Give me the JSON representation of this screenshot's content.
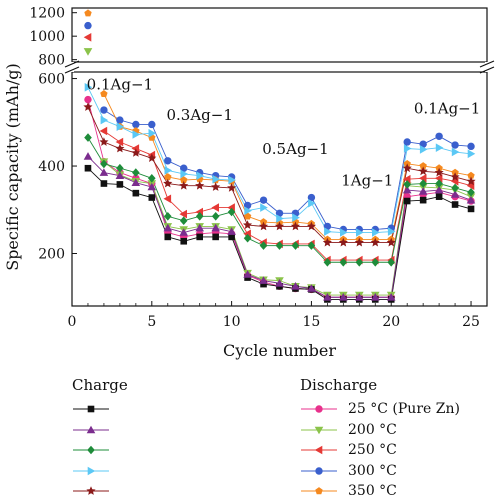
{
  "chart_data": {
    "type": "scatter",
    "xlabel": "Cycle number",
    "ylabel": "Specific capacity (mAh/g)",
    "x_ticks": [
      "0",
      "5",
      "10",
      "15",
      "20",
      "25"
    ],
    "y_ticks_lower": [
      "200",
      "400",
      "600"
    ],
    "y_ticks_upper": [
      "800",
      "1000",
      "1200"
    ],
    "xlim": [
      0,
      26
    ],
    "ylim_lower": [
      80,
      615
    ],
    "ylim_upper": [
      780,
      1240
    ],
    "annotations": [
      {
        "text": "0.1Ag−1",
        "x": 3.0,
        "y": 575
      },
      {
        "text": "0.3Ag−1",
        "x": 8.0,
        "y": 505
      },
      {
        "text": "0.5Ag−1",
        "x": 14.0,
        "y": 428
      },
      {
        "text": "1Ag−1",
        "x": 18.5,
        "y": 355
      },
      {
        "text": "0.1Ag−1",
        "x": 23.5,
        "y": 520
      }
    ],
    "x": [
      1,
      2,
      3,
      4,
      5,
      6,
      7,
      8,
      9,
      10,
      11,
      12,
      13,
      14,
      15,
      16,
      17,
      18,
      19,
      20,
      21,
      22,
      23,
      24,
      25
    ],
    "series": [
      {
        "name": "25 °C (Pure Zn)",
        "group": "discharge",
        "color": "#e8318c",
        "marker": "circle",
        "values": [
          552,
          410,
          385,
          372,
          360,
          248,
          238,
          245,
          248,
          245,
          150,
          135,
          125,
          120,
          118,
          100,
          100,
          100,
          100,
          100,
          330,
          335,
          340,
          330,
          320
        ]
      },
      {
        "name": "200 °C",
        "group": "discharge",
        "color": "#8bc34a",
        "marker": "triangle-down",
        "values": [
          870,
          410,
          380,
          365,
          360,
          262,
          255,
          262,
          262,
          255,
          155,
          140,
          138,
          125,
          122,
          105,
          105,
          105,
          105,
          105,
          355,
          352,
          350,
          345,
          330
        ]
      },
      {
        "name": "250 °C",
        "group": "discharge",
        "color": "#e53935",
        "marker": "triangle-left",
        "values": [
          990,
          480,
          455,
          440,
          425,
          325,
          290,
          295,
          305,
          305,
          245,
          225,
          222,
          222,
          222,
          185,
          185,
          185,
          185,
          185,
          370,
          372,
          372,
          365,
          355
        ]
      },
      {
        "name": "300 °C",
        "group": "discharge",
        "color": "#3a5fcd",
        "marker": "circle",
        "values": [
          1090,
          528,
          505,
          495,
          495,
          412,
          395,
          385,
          378,
          375,
          310,
          322,
          292,
          292,
          328,
          262,
          255,
          255,
          255,
          258,
          455,
          450,
          468,
          448,
          445
        ]
      },
      {
        "name": "350 °C",
        "group": "discharge",
        "color": "#f5891f",
        "marker": "pentagon",
        "values": [
          1195,
          565,
          490,
          480,
          465,
          375,
          368,
          370,
          368,
          365,
          285,
          272,
          270,
          272,
          268,
          232,
          232,
          232,
          232,
          232,
          405,
          400,
          395,
          385,
          378
        ]
      },
      {
        "name": "",
        "group": "charge",
        "color": "#111111",
        "marker": "square",
        "values": [
          395,
          360,
          358,
          338,
          328,
          238,
          228,
          238,
          238,
          238,
          145,
          130,
          125,
          120,
          118,
          95,
          95,
          95,
          95,
          95,
          320,
          322,
          330,
          312,
          302
        ]
      },
      {
        "name": "",
        "group": "charge",
        "color": "#7b2d8e",
        "marker": "triangle-up",
        "values": [
          422,
          385,
          378,
          362,
          352,
          258,
          248,
          258,
          258,
          250,
          152,
          138,
          132,
          125,
          120,
          100,
          100,
          100,
          100,
          100,
          345,
          342,
          345,
          335,
          322
        ]
      },
      {
        "name": "",
        "group": "charge",
        "color": "#1e8c3a",
        "marker": "diamond",
        "values": [
          465,
          405,
          395,
          385,
          372,
          285,
          275,
          285,
          285,
          295,
          235,
          218,
          218,
          218,
          218,
          180,
          180,
          180,
          180,
          180,
          358,
          360,
          360,
          350,
          340
        ]
      },
      {
        "name": "",
        "group": "charge",
        "color": "#5bc8f5",
        "marker": "triangle-right",
        "values": [
          580,
          505,
          490,
          472,
          475,
          390,
          382,
          378,
          370,
          368,
          298,
          305,
          280,
          282,
          315,
          250,
          248,
          248,
          248,
          250,
          440,
          438,
          442,
          432,
          428
        ]
      },
      {
        "name": "",
        "group": "charge",
        "color": "#8b1a1a",
        "marker": "star",
        "values": [
          535,
          455,
          440,
          430,
          418,
          360,
          355,
          355,
          352,
          350,
          265,
          262,
          262,
          262,
          262,
          225,
          225,
          225,
          225,
          225,
          395,
          388,
          385,
          375,
          365
        ]
      }
    ]
  },
  "legend": {
    "charge_title": "Charge",
    "discharge_title": "Discharge"
  }
}
